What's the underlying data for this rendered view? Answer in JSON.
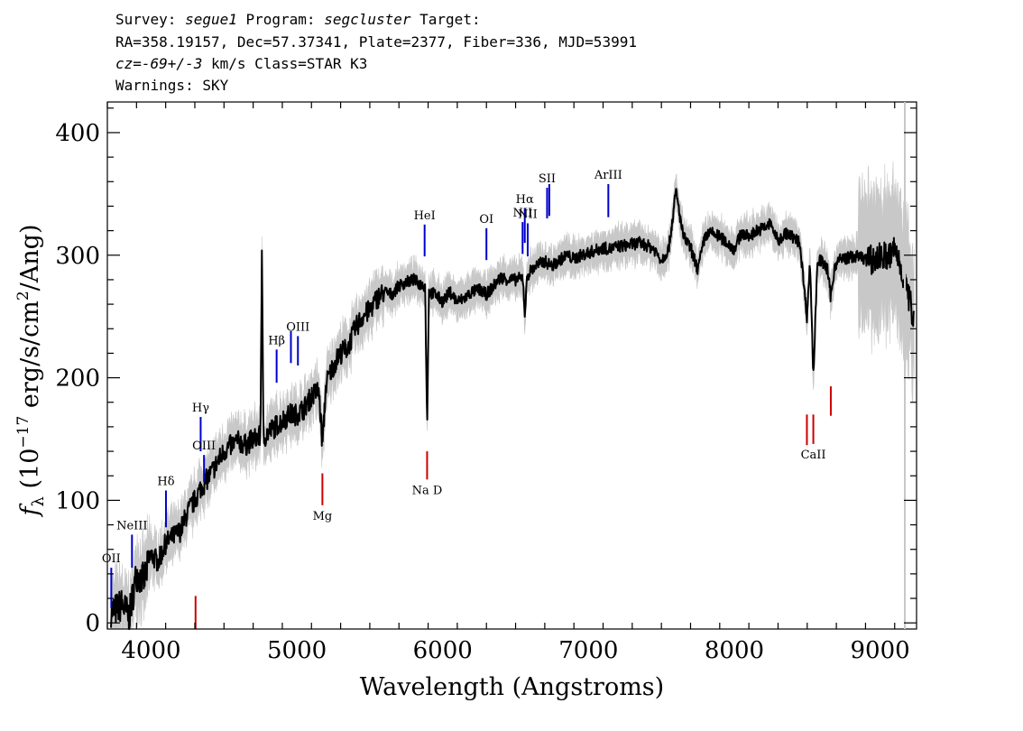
{
  "header": {
    "line1": {
      "p1": "Survey: ",
      "survey": "segue1",
      "p2": " Program: ",
      "program": "segcluster",
      "p3": " Target:"
    },
    "line2": "RA=358.19157, Dec=57.37341, Plate=2377, Fiber=336, MJD=53991",
    "line3": {
      "cz": "cz=-69+/-3",
      "rest": " km/s Class=STAR K3"
    },
    "line4": "Warnings: SKY"
  },
  "chart_data": {
    "type": "line",
    "xlabel": "Wavelength (Angstroms)",
    "ylabel": "f_λ (10^-17 erg/s/cm^2/Ang)",
    "ylabel_parts": {
      "sym": "f",
      "sub": "λ",
      "pre": " (10",
      "exp1": "−17",
      "mid": " erg/s/cm",
      "exp2": "2",
      "post": "/Ang)"
    },
    "xlim": [
      3700,
      9250
    ],
    "ylim": [
      -5,
      425
    ],
    "xticks": [
      4000,
      5000,
      6000,
      7000,
      8000,
      9000
    ],
    "yticks": [
      0,
      100,
      200,
      300,
      400
    ],
    "series": [
      {
        "name": "flux",
        "color": "#000000",
        "x": [
          3750,
          3800,
          3850,
          3900,
          3950,
          4000,
          4050,
          4100,
          4150,
          4200,
          4250,
          4300,
          4340,
          4400,
          4450,
          4500,
          4550,
          4600,
          4650,
          4700,
          4750,
          4760,
          4770,
          4800,
          4850,
          4900,
          4950,
          5000,
          5050,
          5100,
          5150,
          5175,
          5200,
          5250,
          5300,
          5350,
          5400,
          5450,
          5500,
          5550,
          5600,
          5650,
          5700,
          5750,
          5800,
          5850,
          5880,
          5893,
          5905,
          5950,
          6000,
          6050,
          6100,
          6150,
          6200,
          6250,
          6300,
          6350,
          6400,
          6450,
          6500,
          6550,
          6563,
          6580,
          6600,
          6650,
          6700,
          6750,
          6800,
          6850,
          6900,
          6950,
          7000,
          7050,
          7100,
          7150,
          7200,
          7250,
          7300,
          7350,
          7400,
          7450,
          7500,
          7550,
          7600,
          7650,
          7700,
          7750,
          7800,
          7850,
          7900,
          7950,
          8000,
          8050,
          8100,
          8150,
          8200,
          8250,
          8300,
          8350,
          8400,
          8450,
          8498,
          8520,
          8542,
          8570,
          8600,
          8640,
          8662,
          8690,
          8730,
          8780,
          8830,
          8880,
          8930,
          8980,
          9020,
          9060,
          9100,
          9150,
          9200,
          9230
        ],
        "y": [
          10,
          15,
          5,
          40,
          35,
          55,
          50,
          65,
          70,
          75,
          90,
          100,
          110,
          120,
          130,
          140,
          145,
          148,
          145,
          150,
          152,
          305,
          150,
          155,
          160,
          165,
          170,
          170,
          175,
          185,
          190,
          145,
          195,
          210,
          220,
          225,
          240,
          250,
          255,
          265,
          270,
          268,
          275,
          278,
          280,
          276,
          275,
          160,
          270,
          268,
          262,
          270,
          262,
          265,
          270,
          272,
          268,
          275,
          282,
          280,
          280,
          282,
          252,
          283,
          287,
          292,
          295,
          291,
          296,
          300,
          297,
          300,
          302,
          304,
          306,
          305,
          307,
          308,
          309,
          310,
          308,
          305,
          296,
          305,
          352,
          315,
          306,
          288,
          316,
          318,
          315,
          310,
          305,
          318,
          315,
          320,
          322,
          326,
          311,
          318,
          315,
          310,
          250,
          295,
          200,
          296,
          295,
          288,
          265,
          292,
          297,
          298,
          299,
          298,
          296,
          297,
          300,
          298,
          305,
          288,
          263,
          250
        ]
      },
      {
        "name": "error",
        "color": "#c8c8c8"
      }
    ],
    "lines_blue": [
      {
        "label": "OII",
        "x": 3727,
        "y_top": 45,
        "y_bot": 12
      },
      {
        "label": "NeIII",
        "x": 3869,
        "y_top": 72,
        "y_bot": 45
      },
      {
        "label": "Hδ",
        "x": 4102,
        "y_top": 108,
        "y_bot": 78
      },
      {
        "label": "Hγ",
        "x": 4340,
        "y_top": 168,
        "y_bot": 140
      },
      {
        "label": "OIII",
        "x": 4363,
        "y_top": 137,
        "y_bot": 115
      },
      {
        "label": "Hβ",
        "x": 4861,
        "y_top": 223,
        "y_bot": 196
      },
      {
        "label": "",
        "x": 4959,
        "y_top": 238,
        "y_bot": 212
      },
      {
        "label": "OIII",
        "x": 5007,
        "y_top": 234,
        "y_bot": 210
      },
      {
        "label": "HeI",
        "x": 5876,
        "y_top": 325,
        "y_bot": 299
      },
      {
        "label": "OI",
        "x": 6300,
        "y_top": 322,
        "y_bot": 296
      },
      {
        "label": "NII",
        "x": 6548,
        "y_top": 327,
        "y_bot": 301
      },
      {
        "label": "Hα",
        "x": 6563,
        "y_top": 338,
        "y_bot": 310
      },
      {
        "label": "NII",
        "x": 6583,
        "y_top": 326,
        "y_bot": 299
      },
      {
        "label": "SII",
        "x": 6716,
        "y_top": 355,
        "y_bot": 330
      },
      {
        "label": "",
        "x": 6731,
        "y_top": 358,
        "y_bot": 332
      },
      {
        "label": "ArIII",
        "x": 7136,
        "y_top": 358,
        "y_bot": 331
      }
    ],
    "lines_red": [
      {
        "label": "",
        "x": 4305,
        "y_top": 22,
        "y_bot": -5
      },
      {
        "label": "Mg",
        "x": 5175,
        "y_top": 122,
        "y_bot": 96
      },
      {
        "label": "Na D",
        "x": 5893,
        "y_top": 140,
        "y_bot": 117
      },
      {
        "label": "",
        "x": 8498,
        "y_top": 170,
        "y_bot": 145
      },
      {
        "label": "CaII",
        "x": 8542,
        "y_top": 170,
        "y_bot": 146
      },
      {
        "label": "",
        "x": 8662,
        "y_top": 193,
        "y_bot": 169
      }
    ],
    "blue_color": "#0000cc",
    "red_color": "#cc0000"
  }
}
